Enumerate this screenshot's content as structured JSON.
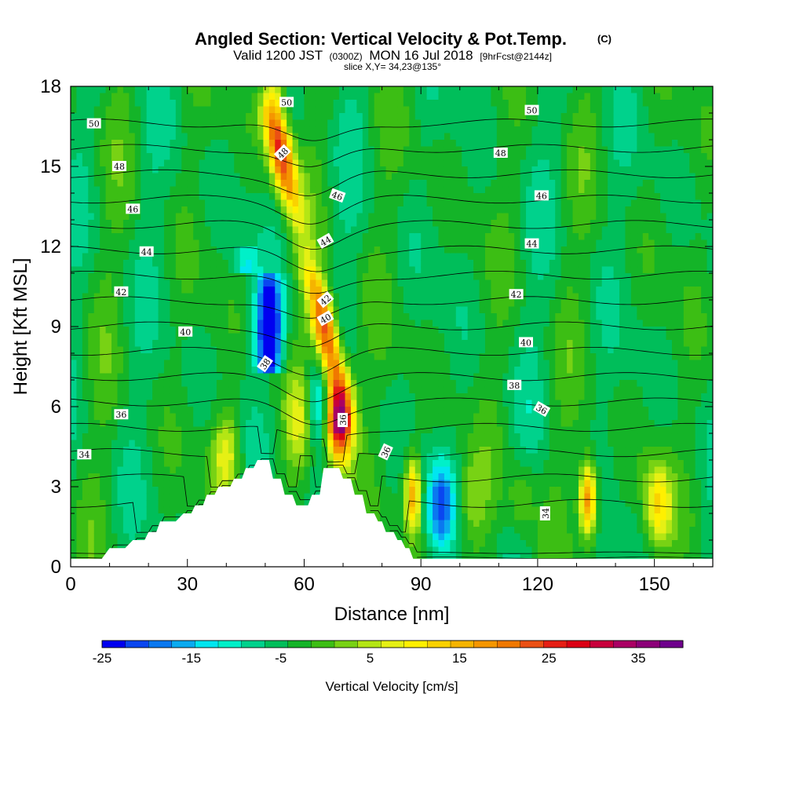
{
  "title": "Angled Section: Vertical Velocity & Pot.Temp.",
  "title_suffix": "(C)",
  "subtitle_a": "Valid 1200 JST",
  "subtitle_b": "(0300Z)",
  "subtitle_c": "MON 16 Jul 2018",
  "subtitle_d": "[9hrFcst@2144z]",
  "slice_label": "slice X,Y= 34,23@135°",
  "colorbar": {
    "label": "Vertical Velocity [cm/s]",
    "tick_labels": [
      "-25",
      "-15",
      "-5",
      "5",
      "15",
      "25",
      "35"
    ],
    "tick_values": [
      -25,
      -15,
      -5,
      5,
      15,
      25,
      35
    ],
    "range": [
      -25,
      40
    ],
    "colors": [
      "#0000f0",
      "#0a46f0",
      "#0a78f0",
      "#0aaaf0",
      "#00e6f0",
      "#00f0c8",
      "#00d28c",
      "#00be5a",
      "#14b428",
      "#3cbe14",
      "#78d214",
      "#b4e614",
      "#e6f014",
      "#fff000",
      "#fad200",
      "#f5b400",
      "#f59600",
      "#f07800",
      "#eb5014",
      "#e61e14",
      "#dc0014",
      "#c8003c",
      "#aa0064",
      "#8c0078",
      "#6e008c"
    ]
  },
  "chart_data": {
    "type": "heatmap",
    "xlabel": "Distance [nm]",
    "ylabel": "Height [Kft MSL]",
    "xlim": [
      0,
      165
    ],
    "ylim": [
      0,
      18
    ],
    "xticks": [
      0,
      30,
      60,
      90,
      120,
      150
    ],
    "xtick_labels": [
      "0",
      "30",
      "60",
      "90",
      "120",
      "150"
    ],
    "yticks": [
      0,
      3,
      6,
      9,
      12,
      15,
      18
    ],
    "ytick_labels": [
      "0",
      "3",
      "6",
      "9",
      "12",
      "15",
      "18"
    ],
    "shaded_field": "Vertical Velocity [cm/s]",
    "contour_field": "Pot.Temp. (C)",
    "background_velocity": -4,
    "velocity_features": [
      {
        "kind": "updraft_plume",
        "x": [
          52,
          56,
          60,
          64,
          69
        ],
        "y": [
          17,
          14,
          12,
          10,
          6
        ],
        "peak": 30
      },
      {
        "kind": "downdraft",
        "x": [
          45,
          48,
          51
        ],
        "y": [
          8.3,
          9.5,
          11
        ],
        "peak": -25
      },
      {
        "kind": "updraft",
        "x": 69,
        "y": 5.5,
        "peak": 40
      },
      {
        "kind": "updraft",
        "x": 133,
        "y": 2.5,
        "peak": 25
      },
      {
        "kind": "updraft",
        "x": 88,
        "y": 2.7,
        "peak": 20
      },
      {
        "kind": "updraft",
        "x": 151,
        "y": 2.3,
        "peak": 15
      },
      {
        "kind": "updraft",
        "x": 40,
        "y": 4.2,
        "peak": 12
      },
      {
        "kind": "downdraft",
        "x": 95,
        "y": 2.3,
        "peak": -15
      },
      {
        "kind": "downdraft",
        "x": 64,
        "y": 6.0,
        "peak": -13
      },
      {
        "kind": "updraft",
        "x": 59,
        "y": 5.5,
        "peak": 8
      },
      {
        "kind": "updraft",
        "x": 103,
        "y": 2.5,
        "peak": 6
      },
      {
        "kind": "updraft",
        "x": 116,
        "y": 2.5,
        "peak": 6
      }
    ],
    "contour_levels": [
      32,
      33,
      34,
      35,
      36,
      37,
      38,
      39,
      40,
      41,
      42,
      43,
      44,
      45,
      46,
      47,
      48,
      49,
      50,
      51
    ],
    "contour_labels": [
      {
        "text": "50",
        "x": 6,
        "y": 16.6,
        "angle": 0
      },
      {
        "text": "48",
        "x": 12.5,
        "y": 15.0,
        "angle": 0
      },
      {
        "text": "46",
        "x": 16,
        "y": 13.4,
        "angle": 0
      },
      {
        "text": "44",
        "x": 19.5,
        "y": 11.8,
        "angle": 0
      },
      {
        "text": "42",
        "x": 13,
        "y": 10.3,
        "angle": 0
      },
      {
        "text": "40",
        "x": 29.5,
        "y": 8.8,
        "angle": 0
      },
      {
        "text": "38",
        "x": 50,
        "y": 7.6,
        "angle": -55
      },
      {
        "text": "36",
        "x": 13,
        "y": 5.7,
        "angle": 0
      },
      {
        "text": "34",
        "x": 3.5,
        "y": 4.2,
        "angle": 0
      },
      {
        "text": "50",
        "x": 55.5,
        "y": 17.4,
        "angle": 0
      },
      {
        "text": "48",
        "x": 54.5,
        "y": 15.5,
        "angle": -45
      },
      {
        "text": "46",
        "x": 68.5,
        "y": 13.9,
        "angle": 20
      },
      {
        "text": "44",
        "x": 65.5,
        "y": 12.2,
        "angle": -30
      },
      {
        "text": "42",
        "x": 65.5,
        "y": 10.0,
        "angle": -40
      },
      {
        "text": "40",
        "x": 65.5,
        "y": 9.3,
        "angle": -30
      },
      {
        "text": "36",
        "x": 70,
        "y": 5.5,
        "angle": -90
      },
      {
        "text": "36",
        "x": 81,
        "y": 4.3,
        "angle": -65
      },
      {
        "text": "50",
        "x": 118.5,
        "y": 17.1,
        "angle": 0
      },
      {
        "text": "48",
        "x": 110.5,
        "y": 15.5,
        "angle": 0
      },
      {
        "text": "46",
        "x": 121,
        "y": 13.9,
        "angle": 0
      },
      {
        "text": "44",
        "x": 118.5,
        "y": 12.1,
        "angle": 0
      },
      {
        "text": "42",
        "x": 114.5,
        "y": 10.2,
        "angle": 0
      },
      {
        "text": "40",
        "x": 117,
        "y": 8.4,
        "angle": 0
      },
      {
        "text": "38",
        "x": 114,
        "y": 6.8,
        "angle": 0
      },
      {
        "text": "36",
        "x": 121,
        "y": 5.9,
        "angle": 30
      },
      {
        "text": "34",
        "x": 122,
        "y": 2.0,
        "angle": -90
      }
    ],
    "terrain": [
      {
        "x": 0,
        "h": 0.3
      },
      {
        "x": 8,
        "h": 0.3
      },
      {
        "x": 10,
        "h": 0.7
      },
      {
        "x": 14,
        "h": 0.7
      },
      {
        "x": 16,
        "h": 1.0
      },
      {
        "x": 19,
        "h": 1.0
      },
      {
        "x": 20,
        "h": 1.3
      },
      {
        "x": 22,
        "h": 1.3
      },
      {
        "x": 23,
        "h": 1.7
      },
      {
        "x": 27,
        "h": 1.7
      },
      {
        "x": 29,
        "h": 2.0
      },
      {
        "x": 31,
        "h": 2.0
      },
      {
        "x": 32,
        "h": 2.3
      },
      {
        "x": 34,
        "h": 2.3
      },
      {
        "x": 35,
        "h": 2.7
      },
      {
        "x": 37,
        "h": 2.7
      },
      {
        "x": 38,
        "h": 3.0
      },
      {
        "x": 41,
        "h": 3.0
      },
      {
        "x": 42,
        "h": 3.3
      },
      {
        "x": 44,
        "h": 3.3
      },
      {
        "x": 45,
        "h": 3.7
      },
      {
        "x": 47,
        "h": 3.7
      },
      {
        "x": 48,
        "h": 4.0
      },
      {
        "x": 51,
        "h": 4.0
      },
      {
        "x": 52,
        "h": 3.3
      },
      {
        "x": 54,
        "h": 3.3
      },
      {
        "x": 55,
        "h": 2.7
      },
      {
        "x": 57,
        "h": 2.7
      },
      {
        "x": 58,
        "h": 2.3
      },
      {
        "x": 61,
        "h": 2.3
      },
      {
        "x": 62,
        "h": 2.7
      },
      {
        "x": 64,
        "h": 2.7
      },
      {
        "x": 65,
        "h": 3.7
      },
      {
        "x": 69,
        "h": 3.7
      },
      {
        "x": 70,
        "h": 3.3
      },
      {
        "x": 72,
        "h": 3.3
      },
      {
        "x": 73,
        "h": 2.7
      },
      {
        "x": 75,
        "h": 2.7
      },
      {
        "x": 76,
        "h": 2.0
      },
      {
        "x": 78,
        "h": 2.0
      },
      {
        "x": 79,
        "h": 1.7
      },
      {
        "x": 80,
        "h": 1.7
      },
      {
        "x": 81,
        "h": 1.3
      },
      {
        "x": 83,
        "h": 1.3
      },
      {
        "x": 84,
        "h": 1.0
      },
      {
        "x": 85,
        "h": 1.0
      },
      {
        "x": 86,
        "h": 0.7
      },
      {
        "x": 87,
        "h": 0.7
      },
      {
        "x": 88,
        "h": 0.3
      },
      {
        "x": 165,
        "h": 0.3
      }
    ]
  }
}
